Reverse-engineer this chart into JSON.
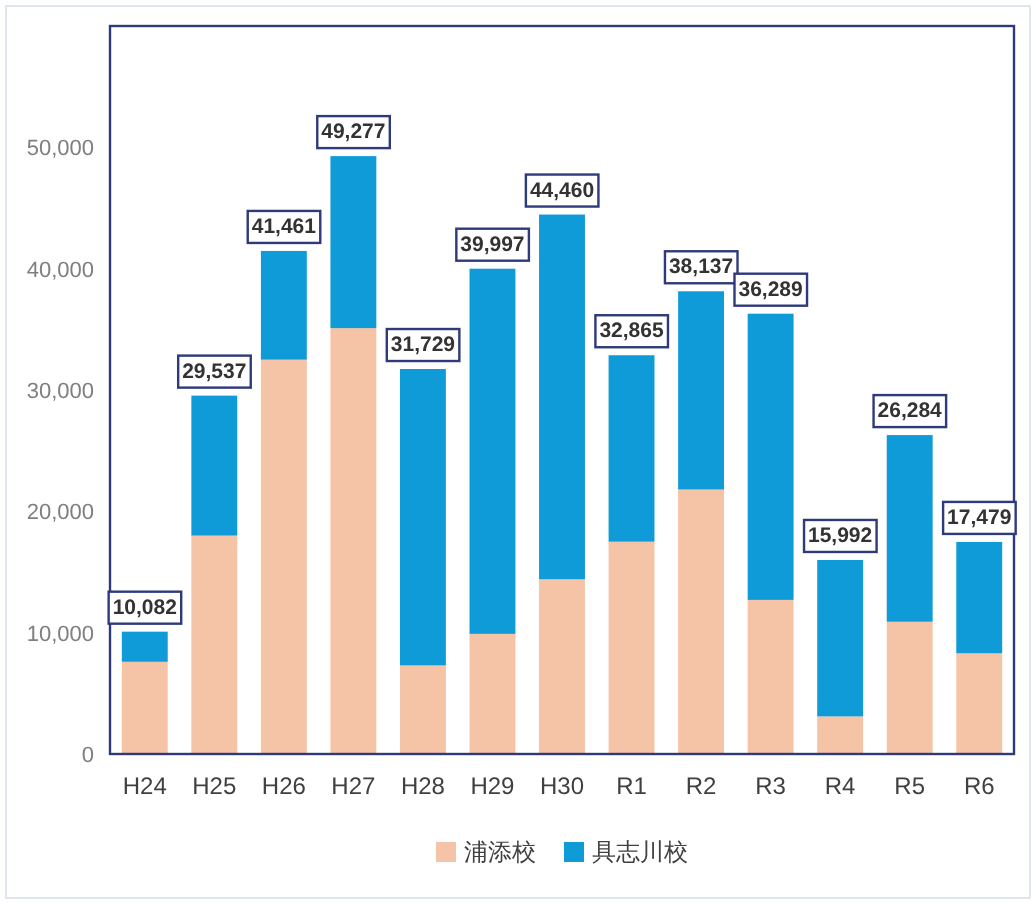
{
  "chart_data": {
    "type": "bar",
    "stacked": true,
    "categories": [
      "H24",
      "H25",
      "H26",
      "H27",
      "H28",
      "H29",
      "H30",
      "R1",
      "R2",
      "R3",
      "R4",
      "R5",
      "R6"
    ],
    "series": [
      {
        "name": "浦添校",
        "color": "#f5c3a6",
        "values": [
          7600,
          18000,
          32500,
          35100,
          7300,
          9900,
          14400,
          17500,
          21800,
          12700,
          3100,
          10900,
          8300
        ]
      },
      {
        "name": "具志川校",
        "color": "#0f9bd7",
        "values": [
          2482,
          11537,
          8961,
          14177,
          24429,
          30097,
          30060,
          15365,
          16337,
          23589,
          12892,
          15384,
          9179
        ]
      }
    ],
    "totals": [
      "10,082",
      "29,537",
      "41,461",
      "49,277",
      "31,729",
      "39,997",
      "44,460",
      "32,865",
      "38,137",
      "36,289",
      "15,992",
      "26,284",
      "17,479"
    ],
    "ylim": [
      0,
      60000
    ],
    "yticks": [
      0,
      {
        "value": 10000,
        "label": "10,000"
      },
      {
        "value": 20000,
        "label": "20,000"
      },
      {
        "value": 30000,
        "label": "30,000"
      },
      {
        "value": 40000,
        "label": "40,000"
      },
      {
        "value": 50000,
        "label": "50,000"
      }
    ],
    "grid": false,
    "legend": "bottom"
  }
}
